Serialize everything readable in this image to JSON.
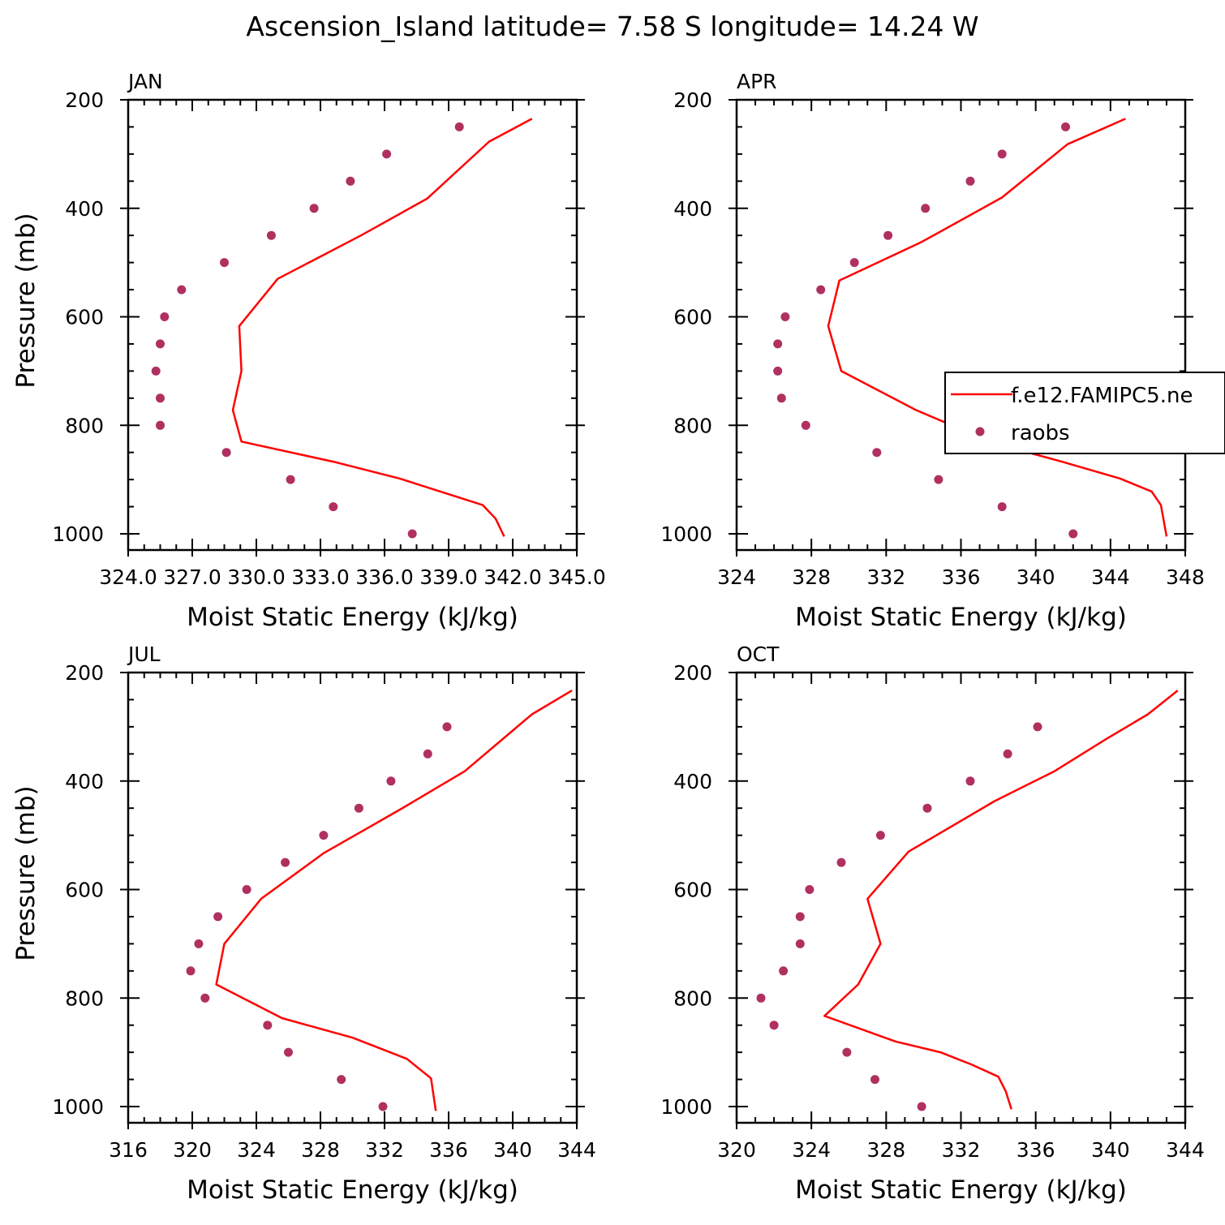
{
  "title": "Ascension_Island  latitude= 7.58 S longitude= 14.24 W",
  "colors": {
    "model": "#ff0000",
    "obs": "#b03060",
    "axis": "#000000"
  },
  "legend": {
    "model_label": "f.e12.FAMIPC5.ne",
    "obs_label": "raobs"
  },
  "chart_data": [
    {
      "type": "line",
      "panel": "JAN",
      "xlabel": "Moist Static Energy (kJ/kg)",
      "ylabel": "Pressure (mb)",
      "xlim": [
        324.0,
        345.0
      ],
      "x_ticks": [
        324.0,
        327.0,
        330.0,
        333.0,
        336.0,
        339.0,
        342.0,
        345.0
      ],
      "x_tick_labels": [
        "324.0",
        "327.0",
        "330.0",
        "333.0",
        "336.0",
        "339.0",
        "342.0",
        "345.0"
      ],
      "y_ticks": [
        200,
        400,
        600,
        800,
        1000
      ],
      "y_tick_labels": [
        "200",
        "400",
        "600",
        "800",
        "1000"
      ],
      "ylim": [
        200,
        1000
      ],
      "y_reversed": true,
      "model": {
        "name": "f.e12.FAMIPC5.ne",
        "mse": [
          342.9,
          340.9,
          338.0,
          334.9,
          331.0,
          329.2,
          329.3,
          328.9,
          329.3,
          333.6,
          336.7,
          340.6,
          341.2,
          341.6
        ],
        "p": [
          235,
          277,
          382,
          450,
          530,
          617,
          700,
          772,
          830,
          867,
          898,
          947,
          972,
          1005
        ]
      },
      "obs": {
        "name": "raobs",
        "mse": [
          339.5,
          336.1,
          334.4,
          332.7,
          330.7,
          328.5,
          326.5,
          325.7,
          325.5,
          325.3,
          325.5,
          325.5,
          328.6,
          331.6,
          333.6,
          337.3
        ],
        "p": [
          250,
          300,
          350,
          400,
          450,
          500,
          550,
          600,
          650,
          700,
          750,
          800,
          850,
          900,
          950,
          1000
        ]
      }
    },
    {
      "type": "line",
      "panel": "APR",
      "xlabel": "Moist Static Energy (kJ/kg)",
      "ylabel": "",
      "xlim": [
        324,
        348
      ],
      "x_ticks": [
        324,
        328,
        332,
        336,
        340,
        344,
        348
      ],
      "x_tick_labels": [
        "324",
        "328",
        "332",
        "336",
        "340",
        "344",
        "348"
      ],
      "y_ticks": [
        200,
        400,
        600,
        800,
        1000
      ],
      "y_tick_labels": [
        "200",
        "400",
        "600",
        "800",
        "1000"
      ],
      "ylim": [
        200,
        1000
      ],
      "y_reversed": true,
      "model": {
        "name": "f.e12.FAMIPC5.ne",
        "mse": [
          344.8,
          341.7,
          338.2,
          333.9,
          329.5,
          328.9,
          329.6,
          333.6,
          337.7,
          341.4,
          344.5,
          346.2,
          346.7,
          347.0
        ],
        "p": [
          235,
          282,
          380,
          462,
          533,
          617,
          700,
          772,
          832,
          867,
          898,
          922,
          947,
          1005
        ]
      },
      "obs": {
        "name": "raobs",
        "mse": [
          341.6,
          338.2,
          336.5,
          334.1,
          332.1,
          330.3,
          328.5,
          326.6,
          326.2,
          326.2,
          326.4,
          327.7,
          331.5,
          334.8,
          338.2,
          342.0
        ],
        "p": [
          250,
          300,
          350,
          400,
          450,
          500,
          550,
          600,
          650,
          700,
          750,
          800,
          850,
          900,
          950,
          1000
        ]
      }
    },
    {
      "type": "line",
      "panel": "JUL",
      "xlabel": "Moist Static Energy (kJ/kg)",
      "ylabel": "Pressure (mb)",
      "xlim": [
        316,
        344
      ],
      "x_ticks": [
        316,
        320,
        324,
        328,
        332,
        336,
        340,
        344
      ],
      "x_tick_labels": [
        "316",
        "320",
        "324",
        "328",
        "332",
        "336",
        "340",
        "344"
      ],
      "y_ticks": [
        200,
        400,
        600,
        800,
        1000
      ],
      "y_tick_labels": [
        "200",
        "400",
        "600",
        "800",
        "1000"
      ],
      "ylim": [
        200,
        1000
      ],
      "y_reversed": true,
      "model": {
        "name": "f.e12.FAMIPC5.ne",
        "mse": [
          343.7,
          341.2,
          337.0,
          333.0,
          328.2,
          324.3,
          322.0,
          321.5,
          325.6,
          330.0,
          333.4,
          334.9,
          335.2
        ],
        "p": [
          233,
          277,
          382,
          452,
          533,
          617,
          700,
          775,
          837,
          873,
          912,
          948,
          1008
        ]
      },
      "obs": {
        "name": "raobs",
        "mse": [
          335.9,
          334.7,
          332.4,
          330.4,
          328.2,
          325.8,
          323.4,
          321.6,
          320.4,
          319.9,
          320.8,
          324.7,
          326.0,
          329.3,
          331.9
        ],
        "p": [
          300,
          350,
          400,
          450,
          500,
          550,
          600,
          650,
          700,
          750,
          800,
          850,
          900,
          950,
          1000
        ]
      }
    },
    {
      "type": "line",
      "panel": "OCT",
      "xlabel": "Moist Static Energy (kJ/kg)",
      "ylabel": "",
      "xlim": [
        320,
        344
      ],
      "x_ticks": [
        320,
        324,
        328,
        332,
        336,
        340,
        344
      ],
      "x_tick_labels": [
        "320",
        "324",
        "328",
        "332",
        "336",
        "340",
        "344"
      ],
      "y_ticks": [
        200,
        400,
        600,
        800,
        1000
      ],
      "y_tick_labels": [
        "200",
        "400",
        "600",
        "800",
        "1000"
      ],
      "ylim": [
        200,
        1000
      ],
      "y_reversed": true,
      "model": {
        "name": "f.e12.FAMIPC5.ne",
        "mse": [
          343.6,
          342.0,
          339.8,
          337.0,
          333.8,
          329.2,
          327.0,
          327.7,
          326.5,
          324.7,
          328.5,
          330.9,
          332.6,
          334.0,
          334.4,
          334.7
        ],
        "p": [
          233,
          277,
          322,
          382,
          437,
          530,
          617,
          700,
          775,
          833,
          880,
          900,
          923,
          945,
          972,
          1005
        ]
      },
      "obs": {
        "name": "raobs",
        "mse": [
          336.1,
          334.5,
          332.5,
          330.2,
          327.7,
          325.6,
          323.9,
          323.4,
          323.4,
          322.5,
          321.3,
          322.0,
          325.9,
          327.4,
          329.9
        ],
        "p": [
          300,
          350,
          400,
          450,
          500,
          550,
          600,
          650,
          700,
          750,
          800,
          850,
          900,
          950,
          1000
        ]
      }
    }
  ]
}
